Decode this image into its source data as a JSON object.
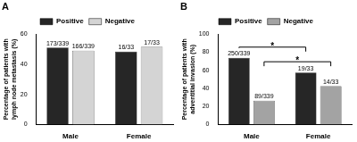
{
  "chart_data": [
    {
      "type": "bar",
      "title": "A",
      "categories": [
        "Male",
        "Female"
      ],
      "y_label": [
        "Percentage of patients with",
        "lymph node metastasis (%)"
      ],
      "series": [
        {
          "name": "Positive",
          "color": "#262626",
          "values": [
            51.03,
            48.48
          ],
          "value_labels": [
            "173/339",
            "16/33"
          ]
        },
        {
          "name": "Negative",
          "color": "#d4d4d4",
          "values": [
            48.97,
            51.52
          ],
          "value_labels": [
            "166/339",
            "17/33"
          ]
        }
      ],
      "ylim": [
        0,
        60
      ],
      "yticks": [
        0,
        20,
        40,
        60
      ],
      "grid": false,
      "legend": "top",
      "data_labels": true
    },
    {
      "type": "bar",
      "title": "B",
      "categories": [
        "Male",
        "Female"
      ],
      "y_label": [
        "Percentage of patients with",
        "adventitial invasion (%)"
      ],
      "series": [
        {
          "name": "Positive",
          "color": "#262626",
          "values": [
            73.75,
            57.58
          ],
          "value_labels": [
            "250/339",
            "19/33"
          ]
        },
        {
          "name": "Negative",
          "color": "#a3a3a3",
          "values": [
            26.25,
            42.42
          ],
          "value_labels": [
            "89/339",
            "14/33"
          ]
        }
      ],
      "ylim": [
        0,
        100
      ],
      "yticks": [
        0,
        20,
        40,
        60,
        80,
        100
      ],
      "grid": false,
      "legend": "top",
      "data_labels": true,
      "significance": [
        {
          "series": "Positive",
          "categories": [
            "Male",
            "Female"
          ],
          "label": "*"
        },
        {
          "series": "Negative",
          "categories": [
            "Male",
            "Female"
          ],
          "label": "*"
        }
      ]
    }
  ]
}
